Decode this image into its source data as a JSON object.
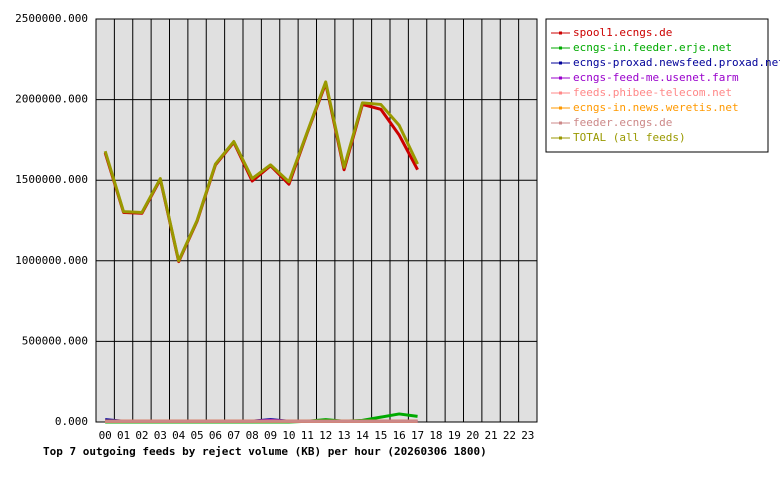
{
  "chart_data": {
    "type": "line",
    "title": "Top 7 outgoing feeds by reject volume (KB) per hour (20260306 1800)",
    "categories": [
      "00",
      "01",
      "02",
      "03",
      "04",
      "05",
      "06",
      "07",
      "08",
      "09",
      "10",
      "11",
      "12",
      "13",
      "14",
      "15",
      "16",
      "17",
      "18",
      "19",
      "20",
      "21",
      "22",
      "23"
    ],
    "series": [
      {
        "name": "spool1.ecngs.de",
        "color": "#cc0000",
        "values": [
          1670000,
          1300000,
          1295000,
          1505000,
          995000,
          1245000,
          1595000,
          1735000,
          1495000,
          1590000,
          1475000,
          1795000,
          2100000,
          1565000,
          1970000,
          1940000,
          1780000,
          1565000,
          null,
          null,
          null,
          null,
          null,
          null
        ]
      },
      {
        "name": "ecngs-in.feeder.erje.net",
        "color": "#00aa00",
        "values": [
          0,
          0,
          0,
          0,
          0,
          0,
          0,
          0,
          0,
          0,
          0,
          5000,
          15000,
          5000,
          10000,
          30000,
          50000,
          35000,
          null,
          null,
          null,
          null,
          null,
          null
        ]
      },
      {
        "name": "ecngs-proxad.newsfeed.proxad.net",
        "color": "#000099",
        "values": [
          15000,
          5000,
          5000,
          5000,
          5000,
          5000,
          5000,
          5000,
          5000,
          15000,
          5000,
          5000,
          5000,
          5000,
          5000,
          5000,
          5000,
          5000,
          null,
          null,
          null,
          null,
          null,
          null
        ]
      },
      {
        "name": "ecngs-feed-me.usenet.farm",
        "color": "#9900cc",
        "values": [
          5000,
          5000,
          5000,
          5000,
          5000,
          5000,
          5000,
          5000,
          5000,
          10000,
          5000,
          5000,
          5000,
          5000,
          5000,
          5000,
          5000,
          5000,
          null,
          null,
          null,
          null,
          null,
          null
        ]
      },
      {
        "name": "feeds.phibee-telecom.net",
        "color": "#ff8888",
        "values": [
          5000,
          5000,
          5000,
          5000,
          5000,
          5000,
          5000,
          5000,
          5000,
          5000,
          5000,
          5000,
          5000,
          5000,
          5000,
          5000,
          5000,
          5000,
          null,
          null,
          null,
          null,
          null,
          null
        ]
      },
      {
        "name": "ecngs-in.news.weretis.net",
        "color": "#ff9900",
        "values": [
          5000,
          5000,
          5000,
          5000,
          5000,
          5000,
          5000,
          5000,
          5000,
          5000,
          5000,
          5000,
          5000,
          5000,
          5000,
          5000,
          5000,
          5000,
          null,
          null,
          null,
          null,
          null,
          null
        ]
      },
      {
        "name": "feeder.ecngs.de",
        "color": "#cc8888",
        "values": [
          5000,
          5000,
          5000,
          5000,
          5000,
          5000,
          5000,
          5000,
          5000,
          5000,
          5000,
          5000,
          5000,
          5000,
          5000,
          5000,
          5000,
          5000,
          null,
          null,
          null,
          null,
          null,
          null
        ]
      },
      {
        "name": "TOTAL (all feeds)",
        "color": "#999900",
        "values": [
          1680000,
          1305000,
          1300000,
          1510000,
          1000000,
          1250000,
          1600000,
          1740000,
          1510000,
          1595000,
          1490000,
          1800000,
          2110000,
          1580000,
          1980000,
          1970000,
          1840000,
          1600000,
          null,
          null,
          null,
          null,
          null,
          null
        ]
      }
    ],
    "ylim": [
      0,
      2500000
    ],
    "yticks": [
      {
        "value": 0,
        "label": "0.000"
      },
      {
        "value": 500000,
        "label": "500000.000"
      },
      {
        "value": 1000000,
        "label": "1000000.000"
      },
      {
        "value": 1500000,
        "label": "1500000.000"
      },
      {
        "value": 2000000,
        "label": "2000000.000"
      },
      {
        "value": 2500000,
        "label": "2500000.000"
      }
    ],
    "grid": true,
    "legend": "right"
  }
}
